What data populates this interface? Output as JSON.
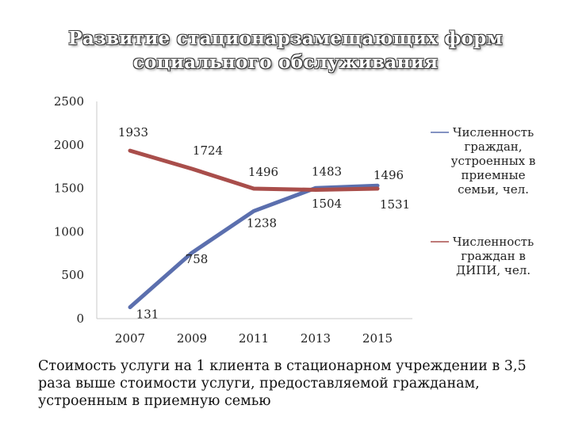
{
  "title_lines": [
    "Развитие стационарзамещающих форм",
    "социального обслуживания"
  ],
  "note": "Стоимость услуги на 1 клиента в стационарном учреждении в 3,5 раза выше стоимости услуги, предоставляемой гражданам, устроенным в приемную семью",
  "chart_data": {
    "type": "line",
    "x": [
      "2007",
      "2009",
      "2011",
      "2013",
      "2015"
    ],
    "yticks": [
      "2500",
      "2000",
      "1500",
      "1000",
      "500",
      "0"
    ],
    "ylim": [
      0,
      2500
    ],
    "grid": false,
    "legend_position": "right",
    "series": [
      {
        "name": "Численность граждан, устроенных в приемные семьи, чел.",
        "name_lines": [
          "Численность",
          "граждан,",
          "устроенных в",
          "приемные",
          "семьи, чел."
        ],
        "color": "#5b6fae",
        "values": [
          131,
          758,
          1238,
          1504,
          1531
        ]
      },
      {
        "name": "Численность граждан в ДИПИ, чел.",
        "name_lines": [
          "Численность",
          "граждан в",
          "ДИПИ, чел."
        ],
        "color": "#a94e4b",
        "values": [
          1933,
          1724,
          1496,
          1483,
          1496
        ]
      }
    ]
  }
}
